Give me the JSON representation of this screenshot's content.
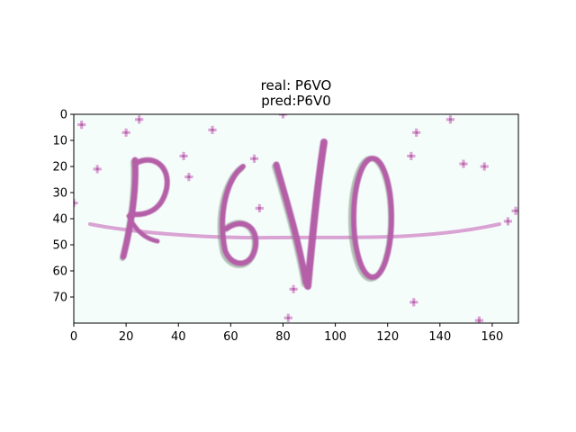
{
  "chart_data": {
    "type": "image",
    "title_lines": [
      "real: P6VO",
      "pred:P6V0"
    ],
    "image_text": "P6VO",
    "xlim": [
      0,
      170
    ],
    "ylim": [
      80,
      0
    ],
    "x_ticks": [
      0,
      20,
      40,
      60,
      80,
      100,
      120,
      140,
      160
    ],
    "y_ticks": [
      0,
      10,
      20,
      30,
      40,
      50,
      60,
      70
    ],
    "grid": false,
    "colors": {
      "image_background": "#f5fdfb",
      "ink": "#b45fa8",
      "ink_light": "#d9a3d3",
      "ink_shadow": "#7c8f7c"
    },
    "noise_points": [
      [
        3,
        4
      ],
      [
        9,
        21
      ],
      [
        20,
        7
      ],
      [
        25,
        2
      ],
      [
        42,
        16
      ],
      [
        44,
        24
      ],
      [
        53,
        6
      ],
      [
        69,
        17
      ],
      [
        71,
        36
      ],
      [
        80,
        0
      ],
      [
        82,
        78
      ],
      [
        84,
        67
      ],
      [
        0,
        34
      ],
      [
        129,
        16
      ],
      [
        131,
        7
      ],
      [
        130,
        72
      ],
      [
        144,
        2
      ],
      [
        149,
        19
      ],
      [
        157,
        20
      ],
      [
        155,
        79
      ],
      [
        169,
        37
      ],
      [
        166,
        41
      ]
    ]
  }
}
